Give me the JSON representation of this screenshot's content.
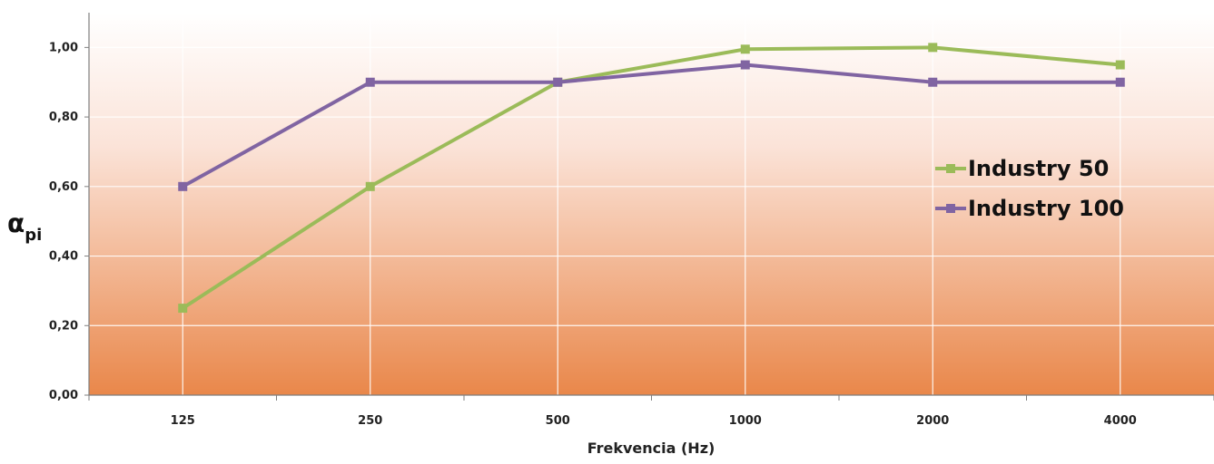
{
  "chart_data": {
    "type": "line",
    "title": "",
    "xlabel": "Frekvencia (Hz)",
    "ylabel": {
      "main": "α",
      "sub": "pi"
    },
    "categories": [
      "125",
      "250",
      "500",
      "1000",
      "2000",
      "4000"
    ],
    "ylim": [
      0,
      1.1
    ],
    "yticks": [
      "0,00",
      "0,20",
      "0,40",
      "0,60",
      "0,80",
      "1,00"
    ],
    "ytick_values": [
      0,
      0.2,
      0.4,
      0.6,
      0.8,
      1.0
    ],
    "grid": true,
    "legend_position": "right",
    "background": {
      "top": "#ffffff",
      "bottom": "#e9874a"
    },
    "series": [
      {
        "name": "Industry 50",
        "color": "#9bbb59",
        "values": [
          0.25,
          0.6,
          0.9,
          0.995,
          1.0,
          0.95
        ]
      },
      {
        "name": "Industry 100",
        "color": "#8064a2",
        "values": [
          0.6,
          0.9,
          0.9,
          0.95,
          0.9,
          0.9
        ]
      }
    ]
  }
}
